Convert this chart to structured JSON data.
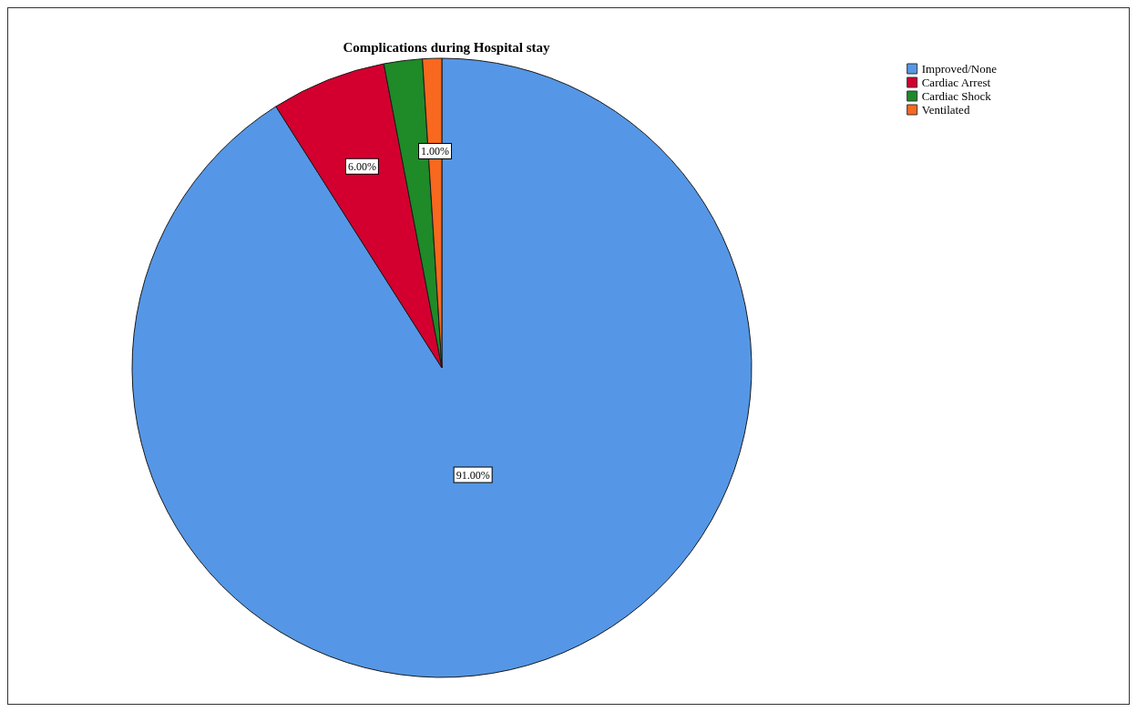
{
  "chart_data": {
    "type": "pie",
    "title": "Complications during Hospital stay",
    "categories": [
      "Improved/None",
      "Cardiac Arrest",
      "Cardiac Shock",
      "Ventilated"
    ],
    "values": [
      91,
      6,
      2,
      1
    ],
    "colors": [
      "#5597e6",
      "#d3002f",
      "#1f8a28",
      "#f8681e"
    ],
    "value_labels": [
      "91.00%",
      "6.00%",
      null,
      "1.00%"
    ],
    "legend": "top right"
  }
}
